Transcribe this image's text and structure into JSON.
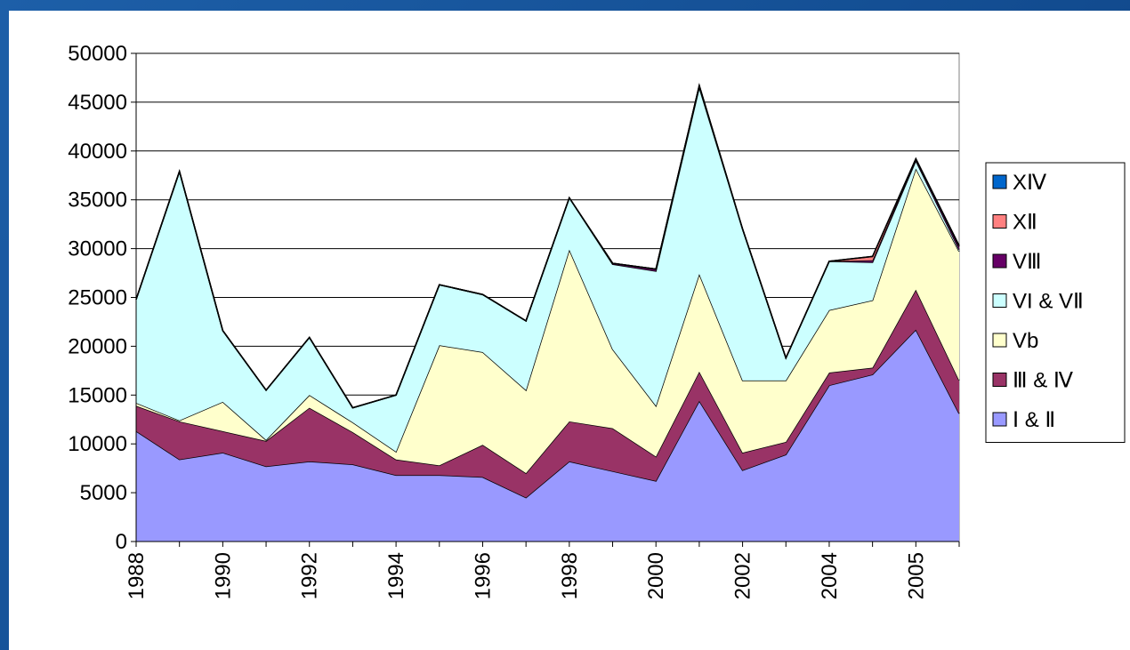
{
  "chart_data": {
    "type": "stacked_area",
    "categories": [
      "1988",
      null,
      "1990",
      null,
      "1992",
      null,
      "1994",
      null,
      "1996",
      null,
      "1998",
      null,
      "2000",
      null,
      "2002",
      null,
      "2004",
      null,
      "2005",
      null
    ],
    "series": [
      {
        "name": "Ⅰ & Ⅱ",
        "color": "#9999ff",
        "values": [
          11300,
          8400,
          9100,
          7700,
          8200,
          7900,
          6800,
          6800,
          6600,
          4500,
          8200,
          7200,
          6200,
          14400,
          7300,
          8900,
          16000,
          17100,
          21700,
          13100
        ]
      },
      {
        "name": "Ⅲ & Ⅳ",
        "color": "#993366",
        "values": [
          2600,
          3900,
          2200,
          2600,
          5500,
          3300,
          1600,
          1000,
          3300,
          2500,
          4100,
          4400,
          2500,
          3000,
          1800,
          1300,
          1300,
          700,
          4100,
          3400
        ]
      },
      {
        "name": "Vb",
        "color": "#ffffcc",
        "values": [
          300,
          100,
          3000,
          100,
          1300,
          1000,
          800,
          12300,
          9500,
          8500,
          17600,
          8100,
          5200,
          10000,
          7400,
          6300,
          6400,
          6900,
          12400,
          13200
        ]
      },
      {
        "name": "VI & VⅡ",
        "color": "#ccffff",
        "values": [
          10600,
          25500,
          7300,
          5100,
          5900,
          1500,
          5800,
          6200,
          5900,
          7100,
          5300,
          8700,
          13800,
          19100,
          15500,
          2300,
          5000,
          3900,
          800,
          200
        ]
      },
      {
        "name": "VⅢ",
        "color": "#660066",
        "values": [
          0,
          0,
          0,
          0,
          0,
          0,
          0,
          0,
          0,
          0,
          0,
          100,
          200,
          200,
          0,
          0,
          0,
          200,
          200,
          300
        ]
      },
      {
        "name": "XⅡ",
        "color": "#ff8080",
        "values": [
          0,
          0,
          0,
          0,
          0,
          0,
          0,
          0,
          0,
          0,
          0,
          0,
          0,
          0,
          0,
          0,
          0,
          400,
          0,
          100
        ]
      },
      {
        "name": "XⅣ",
        "color": "#0066cc",
        "values": [
          0,
          0,
          0,
          0,
          0,
          0,
          0,
          0,
          0,
          0,
          0,
          0,
          0,
          0,
          0,
          0,
          0,
          0,
          0,
          0
        ]
      }
    ],
    "ylim": [
      0,
      50000
    ],
    "yticks": [
      0,
      5000,
      10000,
      15000,
      20000,
      25000,
      30000,
      35000,
      40000,
      45000,
      50000
    ],
    "grid": true,
    "legend": "right"
  }
}
